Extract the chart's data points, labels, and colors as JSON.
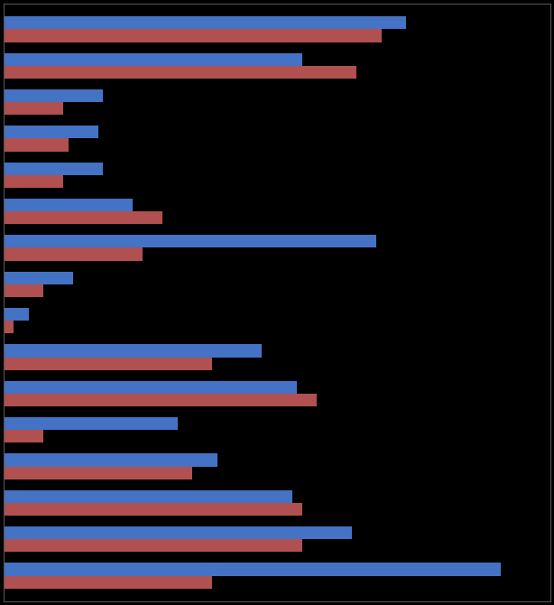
{
  "pairs": [
    {
      "red": 76,
      "blue": 81
    },
    {
      "red": 71,
      "blue": 60
    },
    {
      "red": 12,
      "blue": 20
    },
    {
      "red": 13,
      "blue": 19
    },
    {
      "red": 12,
      "blue": 20
    },
    {
      "red": 32,
      "blue": 26
    },
    {
      "red": 28,
      "blue": 75
    },
    {
      "red": 8,
      "blue": 14
    },
    {
      "red": 2,
      "blue": 5
    },
    {
      "red": 42,
      "blue": 52
    },
    {
      "red": 63,
      "blue": 59
    },
    {
      "red": 8,
      "blue": 35
    },
    {
      "red": 38,
      "blue": 43
    },
    {
      "red": 60,
      "blue": 58
    },
    {
      "red": 60,
      "blue": 70
    },
    {
      "red": 42,
      "blue": 100
    }
  ],
  "red_color": "#b05050",
  "blue_color": "#4472c4",
  "background_color": "#000000",
  "bar_height": 0.35,
  "xlim": [
    0,
    110
  ],
  "figsize": [
    6.14,
    6.7
  ],
  "dpi": 100
}
